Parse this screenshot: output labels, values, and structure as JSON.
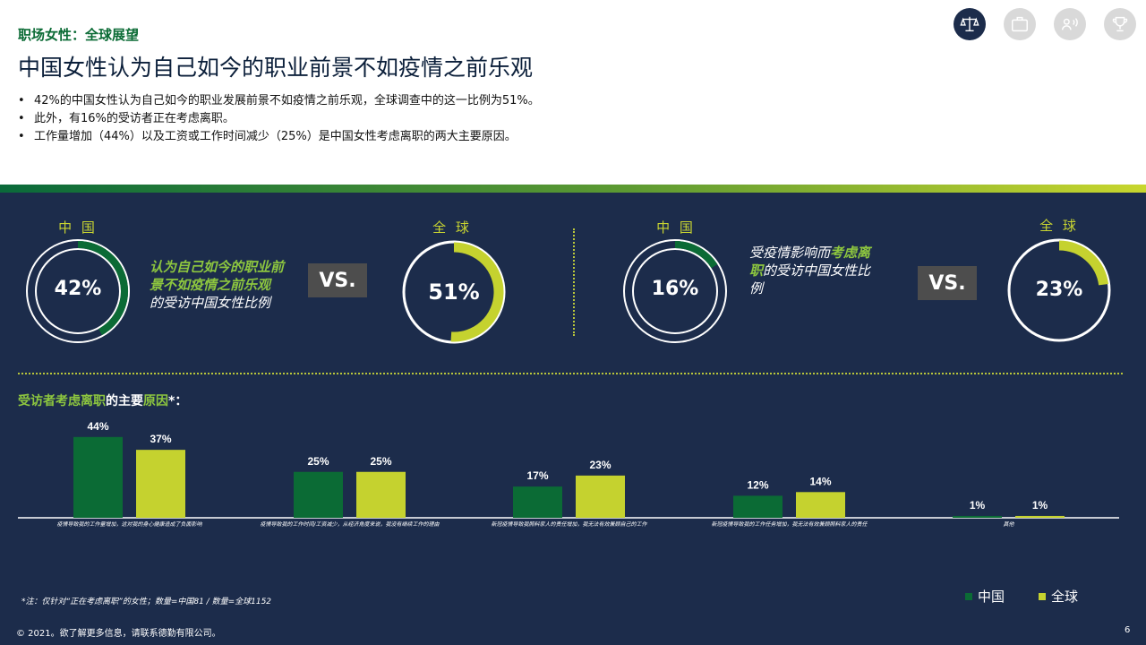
{
  "header": {
    "section_tag": "职场女性：全球展望",
    "title": "中国女性认为自己如今的职业前景不如疫情之前乐观",
    "bullets": [
      "42%的中国女性认为自己如今的职业发展前景不如疫情之前乐观，全球调查中的这一比例为51%。",
      "此外，有16%的受访者正在考虑离职。",
      "工作量增加（44%）以及工资或工作时间减少（25%）是中国女性考虑离职的两大主要原因。"
    ],
    "icons": [
      "scales-icon",
      "briefcase-icon",
      "speaker-icon",
      "trophy-icon"
    ]
  },
  "donuts": {
    "left": {
      "china_label": "中 国",
      "china_value_text": "42%",
      "china_value": 42,
      "desc_highlight": "认为自己如今的职业前景不如疫情之前乐观",
      "desc_rest": "的受访中国女性比例",
      "vs": "VS.",
      "global_label": "全 球",
      "global_value_text": "51%",
      "global_value": 51
    },
    "right": {
      "china_label": "中 国",
      "china_value_text": "16%",
      "china_value": 16,
      "desc_pre": "受疫情影响而",
      "desc_highlight": "考虑离职",
      "desc_rest": "的受访中国女性比例",
      "vs": "VS.",
      "global_label": "全 球",
      "global_value_text": "23%",
      "global_value": 23
    }
  },
  "reasons": {
    "title_hl1": "受访者考虑离职",
    "title_mid": "的主要",
    "title_hl2": "原因",
    "title_end": "*："
  },
  "chart_data": {
    "type": "bar",
    "categories": [
      "疫情导致我的工作量增加，这对我的身心健康造成了负面影响",
      "疫情导致我的工作时间/工资减少，从经济角度来说，我没有继续工作的理由",
      "新冠疫情导致我照料家人的责任增加，我无法有效兼顾自己的工作",
      "新冠疫情导致我的工作任务增加，我无法有效兼顾照料家人的责任",
      "其他"
    ],
    "series": [
      {
        "name": "中国",
        "values": [
          44,
          25,
          17,
          12,
          1
        ],
        "color": "#0b6b35"
      },
      {
        "name": "全球",
        "values": [
          37,
          25,
          23,
          14,
          1
        ],
        "color": "#c5d22f"
      }
    ],
    "value_suffix": "%",
    "legend": "bottom-right"
  },
  "colors": {
    "navy": "#1c2c4b",
    "green": "#0b6b35",
    "lime": "#c5d22f",
    "icon_active": "#1c2c4b",
    "icon_inactive": "#d9d9d9"
  },
  "footer": {
    "note": "*注：仅针对“正在考虑离职”的女性；数量=中国81 / 数量=全球1152",
    "copyright": "© 2021。欲了解更多信息，请联系德勤有限公司。",
    "page": "6"
  }
}
